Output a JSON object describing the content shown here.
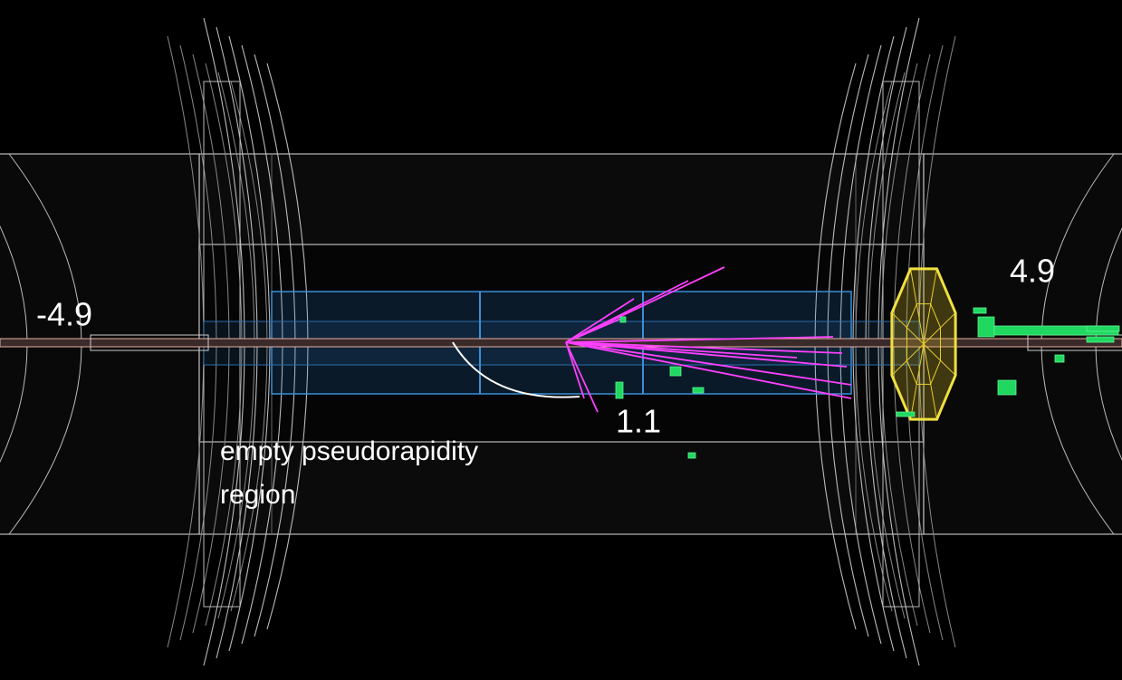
{
  "labels": {
    "left_eta": "-4.9",
    "right_eta": "4.9",
    "gap_edge": "1.1"
  },
  "annotation": {
    "lines": [
      "empty pseudorapidity",
      "region"
    ]
  }
}
